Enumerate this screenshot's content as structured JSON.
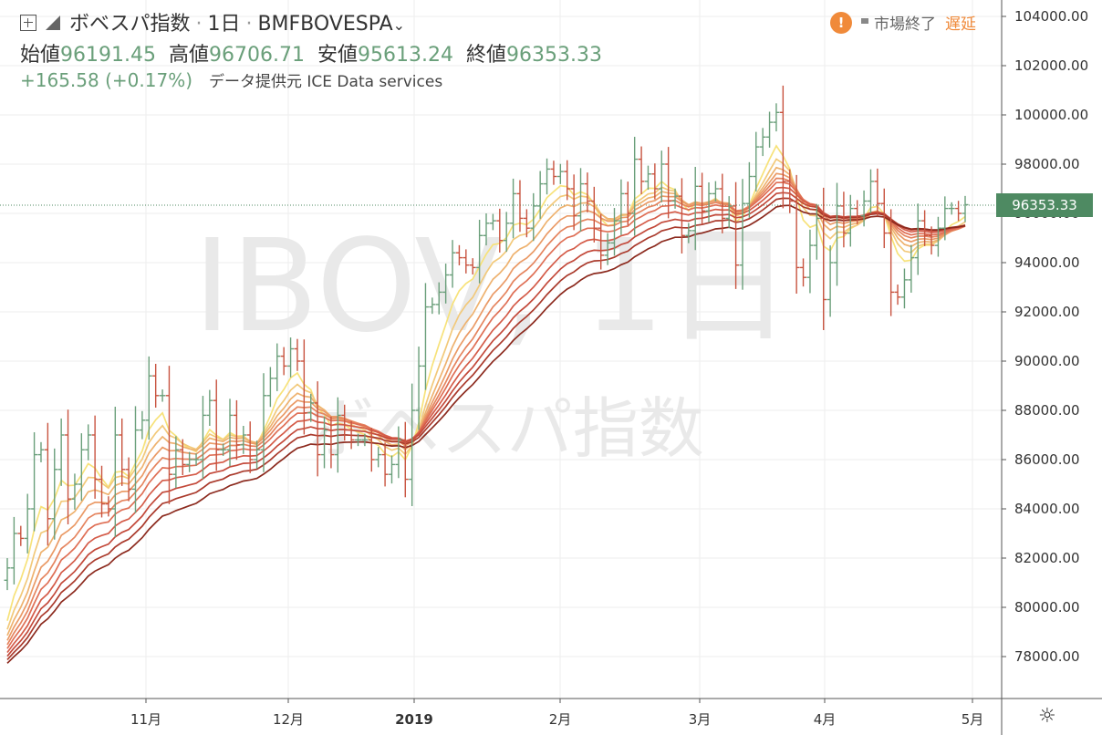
{
  "header": {
    "symbol_name": "ボベスパ指数",
    "interval": "1日",
    "ticker": "BMFBOVESPA",
    "dropdown_icon": "chevron-down-icon",
    "ohlc": {
      "open_label": "始値",
      "open": "96191.45",
      "high_label": "高値",
      "high": "96706.71",
      "low_label": "安値",
      "low": "95613.24",
      "close_label": "終値",
      "close": "96353.33"
    },
    "change": "+165.58 (+0.17%)",
    "data_source": "データ提供元 ICE Data services"
  },
  "status": {
    "warning_icon": "!",
    "market_status": "市場終了",
    "delay_label": "遅延"
  },
  "watermark": {
    "ticker": "IBOV, 1日",
    "name": "ボベスパ指数"
  },
  "price_tag": "96353.33",
  "colors": {
    "up": "#6a9f7a",
    "down": "#c8533f",
    "ribbon": [
      "#f7e27a",
      "#f2c97a",
      "#eeb26f",
      "#ea9a66",
      "#e5845e",
      "#df6f55",
      "#d45b48",
      "#c3493a",
      "#aa3a2c",
      "#8c2a1e"
    ]
  },
  "chart_data": {
    "type": "ohlc",
    "title": "ボベスパ指数 · 1日 · BMFBOVESPA",
    "y_axis": {
      "range": [
        76000,
        105000
      ],
      "ticks": [
        "104000.00",
        "102000.00",
        "100000.00",
        "98000.00",
        "96000.00",
        "94000.00",
        "92000.00",
        "90000.00",
        "88000.00",
        "86000.00",
        "84000.00",
        "82000.00",
        "80000.00",
        "78000.00"
      ],
      "position": "right"
    },
    "x_axis": {
      "labels": [
        {
          "text": "11月",
          "bold": false
        },
        {
          "text": "12月",
          "bold": false
        },
        {
          "text": "2019",
          "bold": true
        },
        {
          "text": "2月",
          "bold": false
        },
        {
          "text": "3月",
          "bold": false
        },
        {
          "text": "4月",
          "bold": false
        },
        {
          "text": "5月",
          "bold": false
        }
      ]
    },
    "last_price": 96353.33,
    "close_series": [
      81600,
      83000,
      82800,
      84000,
      86200,
      86400,
      83600,
      85600,
      87000,
      84400,
      85000,
      86400,
      87000,
      85200,
      84200,
      84000,
      87000,
      85600,
      84800,
      87200,
      87600,
      89400,
      88600,
      88600,
      85400,
      86400,
      85800,
      86000,
      86000,
      87800,
      88400,
      86400,
      86400,
      87800,
      86600,
      87000,
      86000,
      86400,
      88600,
      89300,
      90200,
      89800,
      90500,
      90000,
      87900,
      88300,
      86200,
      87200,
      86200,
      87800,
      87200,
      86800,
      86800,
      86800,
      86000,
      86200,
      85400,
      85800,
      86800,
      85200,
      88000,
      89800,
      92200,
      92300,
      92800,
      93500,
      94400,
      94200,
      93900,
      93800,
      95100,
      95600,
      95700,
      94900,
      95600,
      96800,
      95800,
      95400,
      96300,
      97200,
      97800,
      97500,
      97700,
      97000,
      95900,
      97200,
      96500,
      95400,
      94300,
      94800,
      95700,
      96800,
      96000,
      98200,
      97300,
      97600,
      97000,
      98000,
      96500,
      96700,
      95100,
      95300,
      97100,
      96100,
      96800,
      97000,
      95800,
      96300,
      93900,
      96400,
      97500,
      98700,
      99100,
      99700,
      100100,
      97300,
      96500,
      93800,
      93400,
      94700,
      95800,
      92500,
      94000,
      96300,
      95200,
      96200,
      95900,
      96500,
      97300,
      96400,
      95200,
      92800,
      92600,
      93300,
      94200,
      95700,
      95100,
      94700,
      95400,
      96200,
      96200,
      96000,
      96353
    ]
  }
}
